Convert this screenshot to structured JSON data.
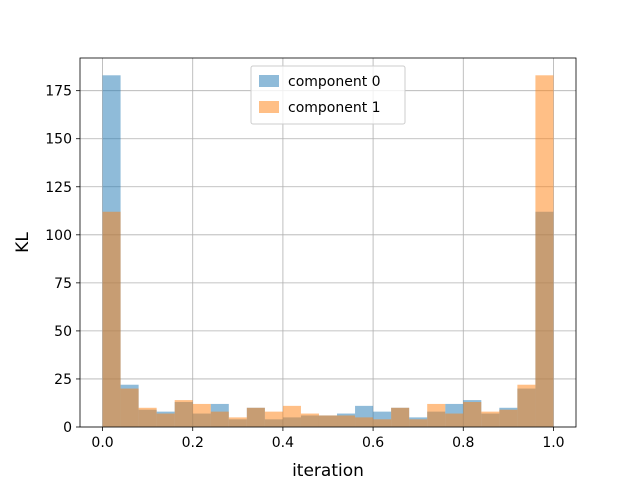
{
  "chart_data": {
    "type": "bar",
    "xlabel": "iteration",
    "ylabel": "KL",
    "xlim": [
      -0.05,
      1.05
    ],
    "ylim": [
      0,
      192
    ],
    "xticks": [
      0.0,
      0.2,
      0.4,
      0.6,
      0.8,
      1.0
    ],
    "xtick_labels": [
      "0.0",
      "0.2",
      "0.4",
      "0.6",
      "0.8",
      "1.0"
    ],
    "yticks": [
      0,
      25,
      50,
      75,
      100,
      125,
      150,
      175
    ],
    "ytick_labels": [
      "0",
      "25",
      "50",
      "75",
      "100",
      "125",
      "150",
      "175"
    ],
    "bin_edges": [
      0.0,
      0.04,
      0.08,
      0.12,
      0.16,
      0.2,
      0.24,
      0.28,
      0.32,
      0.36,
      0.4,
      0.44,
      0.48,
      0.52,
      0.56,
      0.6,
      0.64,
      0.68,
      0.72,
      0.76,
      0.8,
      0.84,
      0.88,
      0.92,
      0.96,
      1.0
    ],
    "grid": true,
    "legend_position": "top-center",
    "series": [
      {
        "name": "component 0",
        "color": "#1f77b4",
        "alpha": 0.5,
        "values": [
          183,
          22,
          9,
          8,
          13,
          7,
          12,
          4,
          10,
          4,
          5,
          6,
          6,
          7,
          11,
          8,
          10,
          5,
          8,
          12,
          14,
          7,
          10,
          20,
          112
        ]
      },
      {
        "name": "component 1",
        "color": "#ff7f0e",
        "alpha": 0.5,
        "values": [
          112,
          20,
          10,
          7,
          14,
          12,
          8,
          5,
          10,
          8,
          11,
          7,
          6,
          6,
          5,
          4,
          10,
          4,
          12,
          7,
          13,
          8,
          9,
          22,
          183
        ]
      }
    ]
  }
}
